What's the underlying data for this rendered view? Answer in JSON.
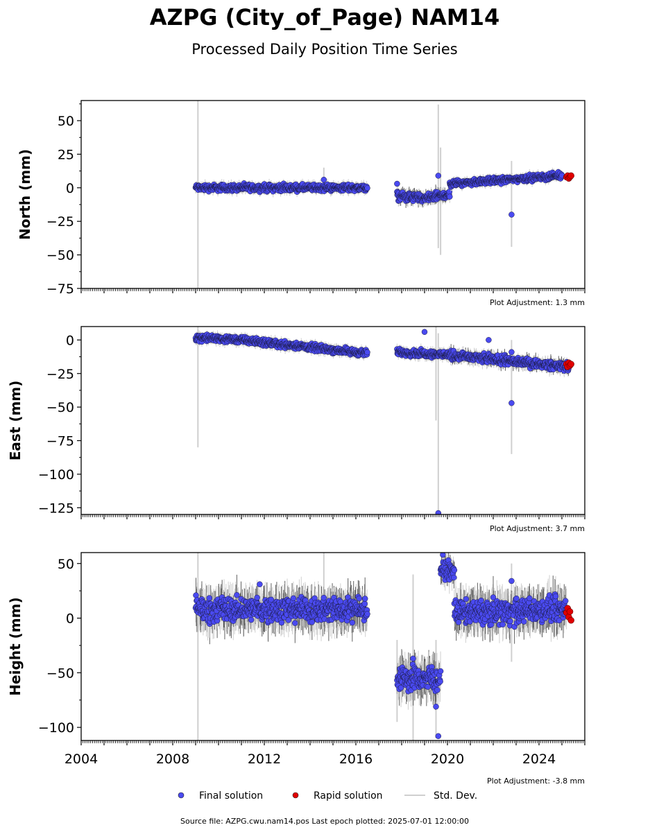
{
  "title": "AZPG (City_of_Page) NAM14",
  "subtitle": "Processed Daily Position Time Series",
  "source_note": "Source file: AZPG.cwu.nam14.pos  Last epoch plotted: 2025-07-01 12:00:00",
  "legend": {
    "final": "Final solution",
    "rapid": "Rapid solution",
    "std": "Std. Dev."
  },
  "colors": {
    "final": "#4a4af0",
    "rapid": "#e00000",
    "stddev": "#cfcfcf",
    "stddev_dense": "#606060"
  },
  "chart_data": [
    {
      "type": "scatter",
      "panel": "north",
      "ylabel": "North (mm)",
      "adjustment": "Plot Adjustment: 1.3 mm",
      "xlim": [
        2004,
        2026
      ],
      "ylim": [
        -75,
        65
      ],
      "yticks": [
        -75,
        -50,
        -25,
        0,
        25,
        50
      ],
      "segments": [
        {
          "series": "final",
          "x": [
            2009.0,
            2016.5
          ],
          "y": [
            0.0,
            0.0
          ],
          "spread": 2
        },
        {
          "series": "final",
          "x": [
            2017.8,
            2019.0
          ],
          "y": [
            -6.0,
            -8.0
          ],
          "spread": 2.5
        },
        {
          "series": "final",
          "x": [
            2019.0,
            2020.1
          ],
          "y": [
            -8.0,
            -5.0
          ],
          "spread": 2.5
        },
        {
          "series": "final",
          "x": [
            2020.1,
            2025.0
          ],
          "y": [
            3.0,
            9.0
          ],
          "spread": 1.8
        }
      ],
      "rapid": [
        {
          "x": 2025.2,
          "y": 8
        },
        {
          "x": 2025.25,
          "y": 9
        },
        {
          "x": 2025.3,
          "y": 7
        },
        {
          "x": 2025.35,
          "y": 8
        },
        {
          "x": 2025.4,
          "y": 9
        }
      ],
      "outliers": [
        {
          "x": 2014.6,
          "y": 6
        },
        {
          "x": 2017.8,
          "y": 3
        },
        {
          "x": 2019.6,
          "y": 9
        },
        {
          "x": 2022.8,
          "y": -20
        }
      ],
      "stddev_spikes": [
        {
          "x": 2009.1,
          "y1": -75,
          "y2": 65
        },
        {
          "x": 2019.6,
          "y1": -45,
          "y2": 62
        },
        {
          "x": 2019.7,
          "y1": -50,
          "y2": 30
        },
        {
          "x": 2022.8,
          "y1": -44,
          "y2": 20
        },
        {
          "x": 2014.6,
          "y1": -2,
          "y2": 15
        }
      ]
    },
    {
      "type": "scatter",
      "panel": "east",
      "ylabel": "East (mm)",
      "adjustment": "Plot Adjustment: 3.7 mm",
      "xlim": [
        2004,
        2026
      ],
      "ylim": [
        -130,
        10
      ],
      "yticks": [
        -125,
        -100,
        -75,
        -50,
        -25,
        0
      ],
      "segments": [
        {
          "series": "final",
          "x": [
            2009.0,
            2011.0
          ],
          "y": [
            2.0,
            0.0
          ],
          "spread": 2
        },
        {
          "series": "final",
          "x": [
            2011.0,
            2016.5
          ],
          "y": [
            0.0,
            -10.0
          ],
          "spread": 2
        },
        {
          "series": "final",
          "x": [
            2017.8,
            2020.0
          ],
          "y": [
            -9.0,
            -11.0
          ],
          "spread": 2
        },
        {
          "series": "final",
          "x": [
            2020.0,
            2025.3
          ],
          "y": [
            -11.0,
            -20.0
          ],
          "spread": 2.5
        }
      ],
      "rapid": [
        {
          "x": 2025.2,
          "y": -18
        },
        {
          "x": 2025.25,
          "y": -20
        },
        {
          "x": 2025.3,
          "y": -17
        },
        {
          "x": 2025.35,
          "y": -19
        },
        {
          "x": 2025.4,
          "y": -18
        }
      ],
      "outliers": [
        {
          "x": 2019.0,
          "y": 6
        },
        {
          "x": 2019.6,
          "y": -129
        },
        {
          "x": 2021.8,
          "y": 0
        },
        {
          "x": 2022.8,
          "y": -47
        },
        {
          "x": 2022.8,
          "y": -9
        }
      ],
      "stddev_spikes": [
        {
          "x": 2009.1,
          "y1": -80,
          "y2": 10
        },
        {
          "x": 2019.5,
          "y1": -60,
          "y2": 10
        },
        {
          "x": 2019.6,
          "y1": -128,
          "y2": 5
        },
        {
          "x": 2022.8,
          "y1": -85,
          "y2": 0
        }
      ]
    },
    {
      "type": "scatter",
      "panel": "height",
      "ylabel": "Height (mm)",
      "adjustment": "Plot Adjustment: -3.8 mm",
      "xlim": [
        2004,
        2026
      ],
      "ylim": [
        -112,
        60
      ],
      "yticks": [
        -100,
        -50,
        0,
        50
      ],
      "xticks": [
        2004,
        2008,
        2012,
        2016,
        2020,
        2024
      ],
      "segments": [
        {
          "series": "final",
          "x": [
            2009.0,
            2016.5
          ],
          "y": [
            8.0,
            8.0
          ],
          "spread": 9
        },
        {
          "series": "final",
          "x": [
            2017.8,
            2019.7
          ],
          "y": [
            -55.0,
            -55.0
          ],
          "spread": 9
        },
        {
          "series": "final",
          "x": [
            2019.7,
            2020.3
          ],
          "y": [
            45.0,
            42.0
          ],
          "spread": 6
        },
        {
          "series": "final",
          "x": [
            2020.3,
            2025.2
          ],
          "y": [
            5.0,
            8.0
          ],
          "spread": 9
        }
      ],
      "rapid": [
        {
          "x": 2025.2,
          "y": 5
        },
        {
          "x": 2025.25,
          "y": 9
        },
        {
          "x": 2025.3,
          "y": 1
        },
        {
          "x": 2025.35,
          "y": 6
        },
        {
          "x": 2025.4,
          "y": -2
        }
      ],
      "outliers": [
        {
          "x": 2011.8,
          "y": 31
        },
        {
          "x": 2018.5,
          "y": -37
        },
        {
          "x": 2019.5,
          "y": -81
        },
        {
          "x": 2019.6,
          "y": -108
        },
        {
          "x": 2022.8,
          "y": 34
        },
        {
          "x": 2019.8,
          "y": 58
        }
      ],
      "stddev_spikes": [
        {
          "x": 2009.1,
          "y1": -112,
          "y2": 60
        },
        {
          "x": 2018.5,
          "y1": -112,
          "y2": 40
        },
        {
          "x": 2019.5,
          "y1": -110,
          "y2": -20
        },
        {
          "x": 2014.6,
          "y1": -5,
          "y2": 60
        },
        {
          "x": 2022.8,
          "y1": -40,
          "y2": 50
        },
        {
          "x": 2017.8,
          "y1": -95,
          "y2": -20
        }
      ]
    }
  ]
}
